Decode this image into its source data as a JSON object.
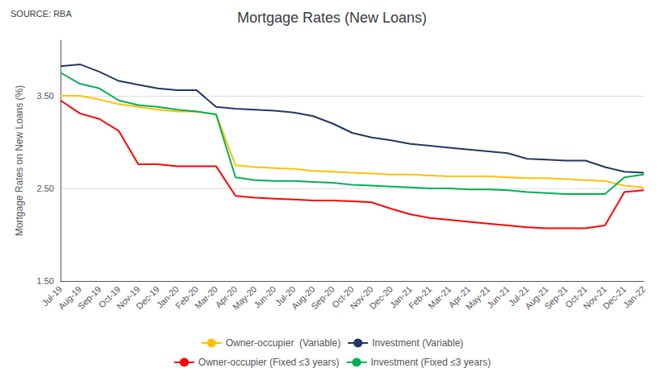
{
  "chart_data": {
    "type": "line",
    "title": "Mortgage Rates (New Loans)",
    "annotations": [
      "SOURCE: RBA"
    ],
    "ylabel": "Mortgage Rates on New Loans (%)",
    "ylim": [
      1.5,
      4.1
    ],
    "yticks": [
      {
        "value": 1.5,
        "label": "1.50"
      },
      {
        "value": 2.5,
        "label": "2.50"
      },
      {
        "value": 3.5,
        "label": "3.50"
      }
    ],
    "grid": true,
    "legend": "bottom",
    "categories": [
      "Jul-19",
      "Aug-19",
      "Sep-19",
      "Oct-19",
      "Nov-19",
      "Dec-19",
      "Jan-20",
      "Feb-20",
      "Mar-20",
      "Apr-20",
      "May-20",
      "Jun-20",
      "Jul-20",
      "Aug-20",
      "Sep-20",
      "Oct-20",
      "Nov-20",
      "Dec-20",
      "Jan-21",
      "Feb-21",
      "Mar-21",
      "Apr-21",
      "May-21",
      "Jun-21",
      "Jul-21",
      "Aug-21",
      "Sep-21",
      "Oct-21",
      "Nov-21",
      "Dec-21",
      "Jan-22"
    ],
    "series": [
      {
        "name": "Owner-occupier  (Variable)",
        "color": "#FFC000",
        "values": [
          3.5,
          3.5,
          3.46,
          3.41,
          3.38,
          3.35,
          3.33,
          3.33,
          3.3,
          2.75,
          2.73,
          2.72,
          2.71,
          2.69,
          2.68,
          2.67,
          2.66,
          2.65,
          2.65,
          2.64,
          2.63,
          2.63,
          2.63,
          2.62,
          2.61,
          2.61,
          2.6,
          2.59,
          2.58,
          2.53,
          2.51
        ]
      },
      {
        "name": "Investment (Variable)",
        "color": "#1F3864",
        "values": [
          3.82,
          3.84,
          3.76,
          3.66,
          3.62,
          3.58,
          3.56,
          3.56,
          3.38,
          3.36,
          3.35,
          3.34,
          3.32,
          3.28,
          3.2,
          3.1,
          3.05,
          3.02,
          2.98,
          2.96,
          2.94,
          2.92,
          2.9,
          2.88,
          2.82,
          2.81,
          2.8,
          2.8,
          2.73,
          2.68,
          2.67
        ]
      },
      {
        "name": "Owner-occupier (Fixed ≤3 years)",
        "color": "#FF0000",
        "values": [
          3.45,
          3.31,
          3.25,
          3.12,
          2.76,
          2.76,
          2.74,
          2.74,
          2.74,
          2.42,
          2.4,
          2.39,
          2.38,
          2.37,
          2.37,
          2.36,
          2.35,
          2.28,
          2.22,
          2.18,
          2.16,
          2.14,
          2.12,
          2.1,
          2.08,
          2.07,
          2.07,
          2.07,
          2.1,
          2.46,
          2.48
        ]
      },
      {
        "name": "Investment (Fixed ≤3 years)",
        "color": "#00B050",
        "values": [
          3.75,
          3.63,
          3.58,
          3.45,
          3.4,
          3.38,
          3.35,
          3.33,
          3.3,
          2.62,
          2.59,
          2.58,
          2.58,
          2.57,
          2.56,
          2.54,
          2.53,
          2.52,
          2.51,
          2.5,
          2.5,
          2.49,
          2.49,
          2.48,
          2.46,
          2.45,
          2.44,
          2.44,
          2.44,
          2.62,
          2.65
        ]
      }
    ]
  }
}
